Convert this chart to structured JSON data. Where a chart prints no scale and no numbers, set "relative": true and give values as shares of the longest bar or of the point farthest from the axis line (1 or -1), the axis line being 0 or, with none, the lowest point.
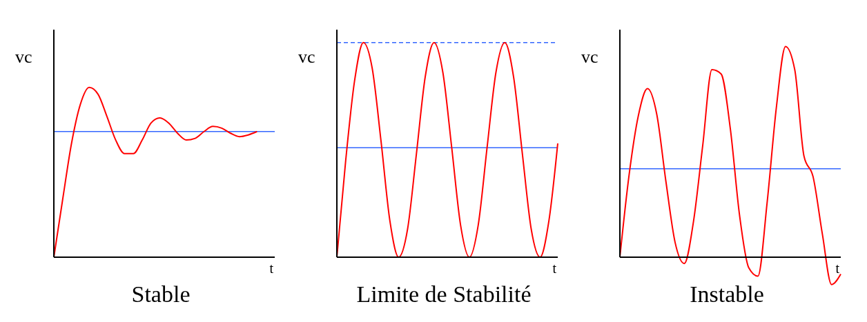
{
  "chart_data": [
    {
      "type": "line",
      "title": "Stable",
      "xlabel": "t",
      "ylabel": "vc",
      "relative": true,
      "marker": "none",
      "categories": [
        null,
        null,
        null,
        null,
        null,
        null,
        null,
        null,
        null,
        null,
        null,
        null,
        null,
        null,
        null,
        null,
        null,
        null,
        null,
        null,
        null,
        null,
        null,
        null,
        null,
        null
      ],
      "series": [
        {
          "color": "#ff0000",
          "values": [
            0,
            0.34,
            0.67,
            0.9,
            1,
            0.96,
            0.83,
            0.69,
            0.61,
            0.61,
            0.69,
            0.79,
            0.82,
            0.79,
            0.73,
            0.69,
            0.7,
            0.74,
            0.77,
            0.76,
            0.73,
            0.71,
            0.72,
            0.74,
            null,
            null
          ]
        }
      ],
      "ref_lines": [
        {
          "axis": "y",
          "value": 0.74,
          "color": "#3366ff"
        }
      ]
    },
    {
      "type": "line",
      "title": "Limite de Stabilité",
      "xlabel": "t",
      "ylabel": "vc",
      "relative": true,
      "marker": "none",
      "categories": [
        null,
        null,
        null,
        null,
        null,
        null,
        null,
        null,
        null,
        null,
        null,
        null,
        null,
        null,
        null,
        null,
        null,
        null,
        null,
        null,
        null,
        null,
        null,
        null,
        null,
        null
      ],
      "series": [
        {
          "color": "#ff0000",
          "values": [
            0,
            0.45,
            0.82,
            1,
            0.88,
            0.54,
            0.17,
            0,
            0.13,
            0.48,
            0.84,
            1,
            0.86,
            0.51,
            0.15,
            0,
            0.15,
            0.51,
            0.86,
            1,
            0.84,
            0.48,
            0.13,
            0,
            0.17,
            0.53
          ]
        }
      ],
      "ref_lines": [
        {
          "axis": "y",
          "value": 0.51,
          "color": "#3366ff"
        },
        {
          "axis": "y",
          "value": 1,
          "color": "#3366ff",
          "line_style": "dashed"
        }
      ]
    },
    {
      "type": "line",
      "title": "Instable",
      "xlabel": "t",
      "ylabel": "vc",
      "relative": true,
      "marker": "none",
      "categories": [
        null,
        null,
        null,
        null,
        null,
        null,
        null,
        null,
        null,
        null,
        null,
        null,
        null,
        null,
        null,
        null,
        null,
        null,
        null,
        null,
        null,
        null,
        null,
        null,
        null
      ],
      "series": [
        {
          "color": "#ff0000",
          "values": [
            0,
            0.39,
            0.67,
            0.8,
            0.68,
            0.36,
            0.07,
            -0.03,
            0.17,
            0.53,
            0.89,
            0.87,
            0.61,
            0.2,
            -0.05,
            -0.09,
            0.26,
            0.71,
            1,
            0.89,
            0.48,
            0.38,
            0.11,
            -0.13,
            -0.08
          ]
        }
      ],
      "ref_lines": [
        {
          "axis": "y",
          "value": 0.42,
          "color": "#3366ff"
        }
      ]
    }
  ]
}
